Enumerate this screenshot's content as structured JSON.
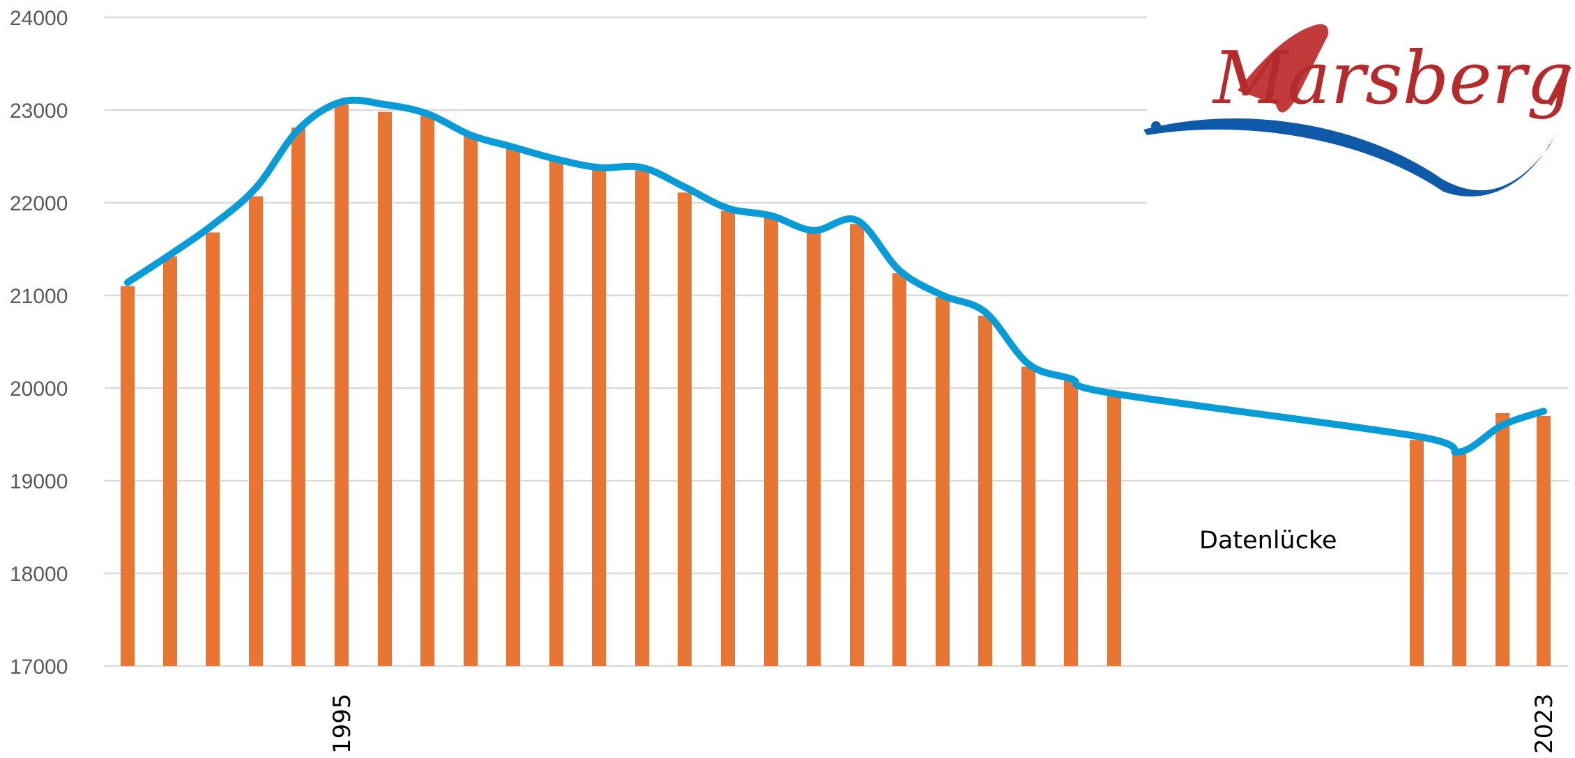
{
  "chart_data": {
    "type": "bar",
    "ylim": [
      17000,
      24000
    ],
    "yticks": [
      "17000",
      "18000",
      "19000",
      "20000",
      "21000",
      "22000",
      "23000",
      "24000"
    ],
    "x_labels_shown": [
      "1995",
      "2023"
    ],
    "grid": true,
    "series": [
      {
        "values": [
          21100,
          21420,
          21680,
          22070,
          22810,
          23060,
          22980,
          22940,
          22720,
          22600,
          22480,
          22350,
          22350,
          22110,
          21910,
          21840,
          21680,
          21770,
          21240,
          20980,
          20780,
          20230,
          20080,
          19920,
          19440,
          19300,
          19730,
          19700
        ],
        "color": "#e97535"
      }
    ],
    "trend": {
      "values": [
        21140,
        21440,
        21760,
        22160,
        22790,
        23090,
        23060,
        22960,
        22730,
        22600,
        22470,
        22380,
        22380,
        22170,
        21940,
        21860,
        21700,
        21810,
        21270,
        21000,
        20820,
        20260,
        20100,
        19940,
        19480,
        19310,
        19600,
        19750
      ],
      "color": "#079bd7"
    },
    "annotation": "Datenlücke"
  },
  "logo": {
    "text": "Marsberg",
    "red": "#b52b2b",
    "blue": "#0e5aa8"
  }
}
